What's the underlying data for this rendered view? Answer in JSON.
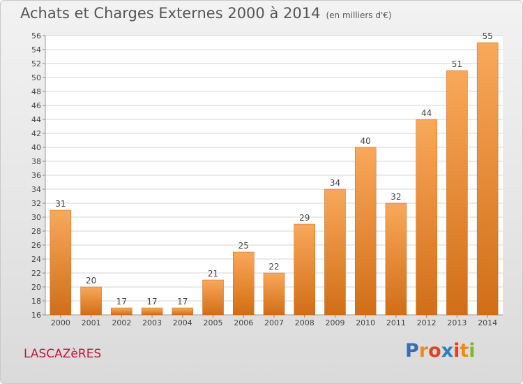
{
  "header": {
    "title": "Achats et Charges Externes 2000 à 2014",
    "unit": "(en milliers d'€)"
  },
  "footer": {
    "town": "LASCAZèRES",
    "logo_text": "Proxiti"
  },
  "colors": {
    "bar_top": "#f9a85a",
    "bar_bottom": "#d16e17",
    "town": "#c9113c",
    "logo_letters": [
      "#3a6bb5",
      "#f08a1c",
      "#e8401c",
      "#2e7fc0",
      "#e8401c",
      "#f08a1c",
      "#7cb82a"
    ]
  },
  "chart_data": {
    "type": "bar",
    "title": "Achats et Charges Externes 2000 à 2014",
    "subtitle": "(en milliers d'€)",
    "categories": [
      "2000",
      "2001",
      "2002",
      "2003",
      "2004",
      "2005",
      "2006",
      "2007",
      "2008",
      "2009",
      "2010",
      "2011",
      "2012",
      "2013",
      "2014"
    ],
    "values": [
      31,
      20,
      17,
      17,
      17,
      21,
      25,
      22,
      29,
      34,
      40,
      32,
      44,
      51,
      55
    ],
    "ylim": [
      16,
      56
    ],
    "yticks": [
      16,
      18,
      20,
      22,
      24,
      26,
      28,
      30,
      32,
      34,
      36,
      38,
      40,
      42,
      44,
      46,
      48,
      50,
      52,
      54,
      56
    ],
    "grid": true,
    "data_labels": true
  }
}
